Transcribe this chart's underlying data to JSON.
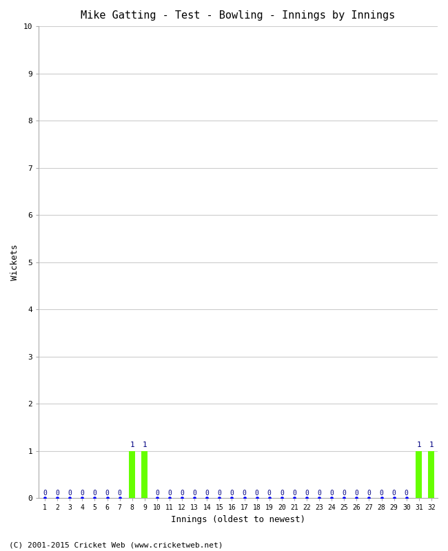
{
  "title": "Mike Gatting - Test - Bowling - Innings by Innings",
  "xlabel": "Innings (oldest to newest)",
  "ylabel": "Wickets",
  "num_innings": 32,
  "wickets": [
    0,
    0,
    0,
    0,
    0,
    0,
    0,
    1,
    1,
    0,
    0,
    0,
    0,
    0,
    0,
    0,
    0,
    0,
    0,
    0,
    0,
    0,
    0,
    0,
    0,
    0,
    0,
    0,
    0,
    0,
    1,
    1
  ],
  "bar_color_zero": "#0000ff",
  "bar_color_nonzero": "#66ff00",
  "ylim": [
    0,
    10
  ],
  "yticks": [
    0,
    1,
    2,
    3,
    4,
    5,
    6,
    7,
    8,
    9,
    10
  ],
  "background_color": "#ffffff",
  "grid_color": "#cccccc",
  "label_color": "#000080",
  "title_fontsize": 11,
  "axis_fontsize": 9,
  "tick_fontsize": 8,
  "footer": "(C) 2001-2015 Cricket Web (www.cricketweb.net)",
  "footer_fontsize": 8,
  "bar_width": 0.5
}
